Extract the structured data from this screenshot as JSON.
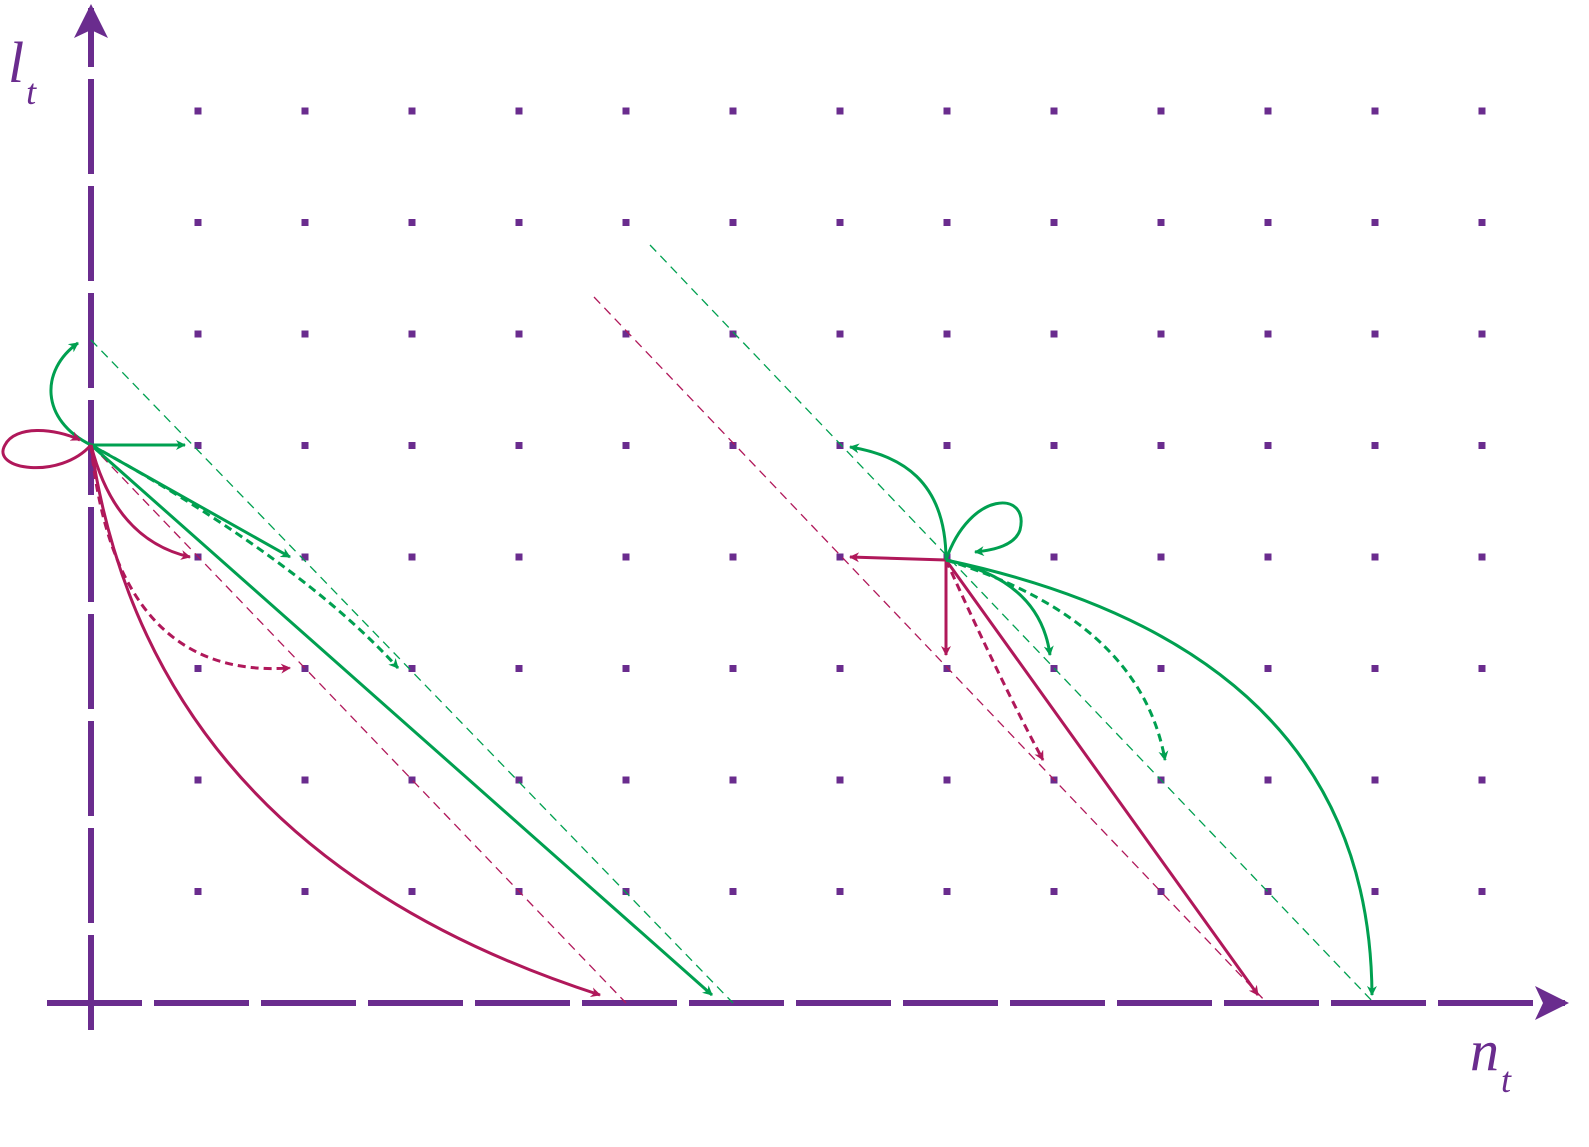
{
  "axes": {
    "y_label": {
      "main": "l",
      "sub": "t"
    },
    "x_label": {
      "main": "n",
      "sub": "t"
    }
  }
}
